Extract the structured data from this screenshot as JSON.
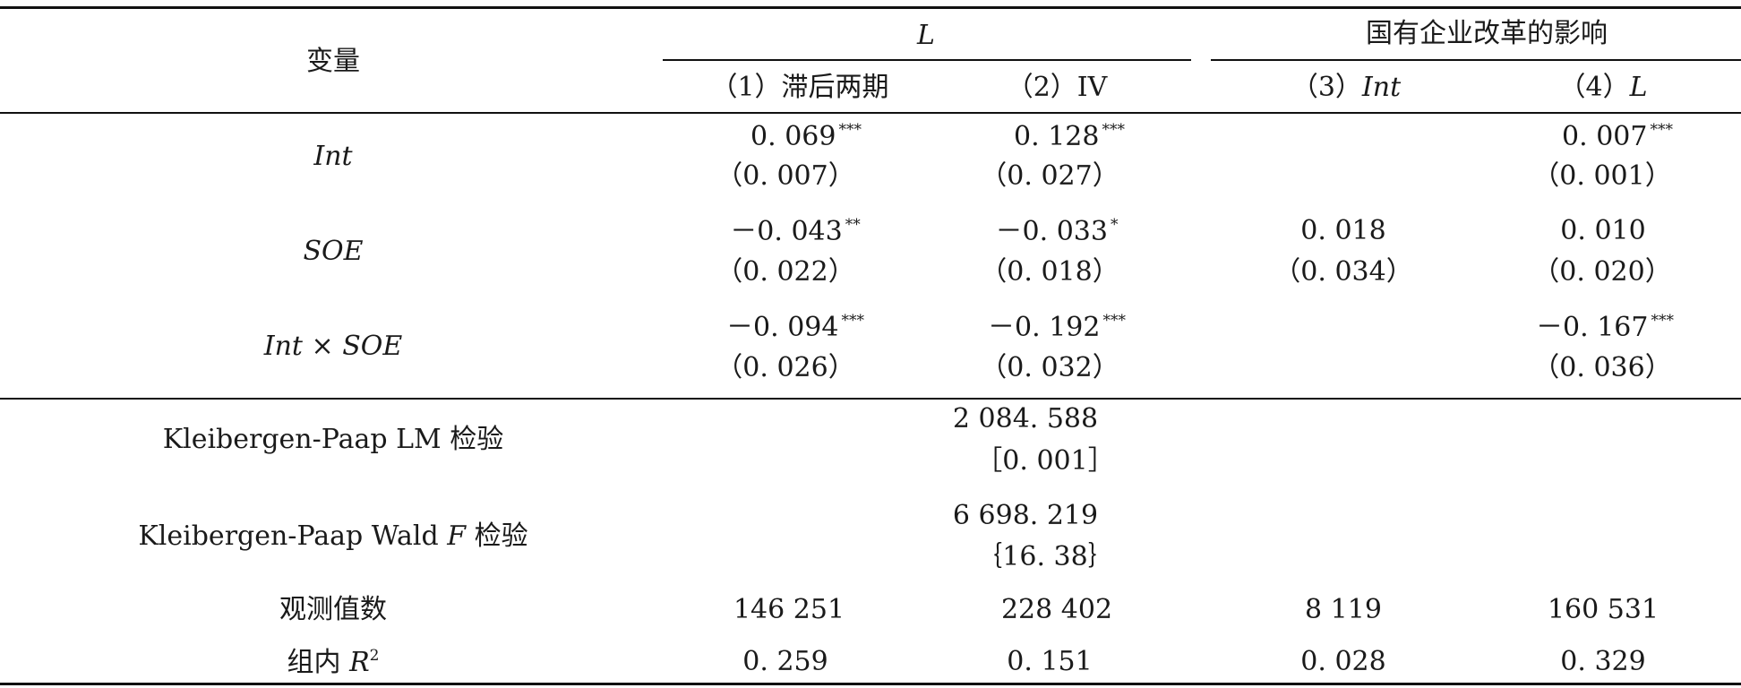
{
  "header": {
    "var_label": "变量",
    "group_L": "L",
    "group_reform": "国有企业改革的影响",
    "col1": "（1）滞后两期",
    "col2": "（2）IV",
    "col3_prefix": "（3）",
    "col3_var": "Int",
    "col4_prefix": "（4）",
    "col4_var": "L"
  },
  "rows": {
    "int": {
      "label": "Int",
      "c1": "0. 069",
      "c1_sig": "***",
      "c1_se": "（0. 007）",
      "c2": "0. 128",
      "c2_sig": "***",
      "c2_se": "（0. 027）",
      "c4": "0. 007",
      "c4_sig": "***",
      "c4_se": "（0. 001）"
    },
    "soe": {
      "label": "SOE",
      "c1": "－0. 043",
      "c1_sig": "**",
      "c1_se": "（0. 022）",
      "c2": "－0. 033",
      "c2_sig": "*",
      "c2_se": "（0. 018）",
      "c3": "0. 018",
      "c3_se": "（0. 034）",
      "c4": "0. 010",
      "c4_se": "（0. 020）"
    },
    "int_soe": {
      "label": "Int × SOE",
      "c1": "－0. 094",
      "c1_sig": "***",
      "c1_se": "（0. 026）",
      "c2": "－0. 192",
      "c2_sig": "***",
      "c2_se": "（0. 032）",
      "c4": "－0. 167",
      "c4_sig": "***",
      "c4_se": "（0. 036）"
    },
    "kp_lm": {
      "label": "Kleibergen-Paap LM 检验",
      "value": "2 084. 588",
      "p": "［0. 001］"
    },
    "kp_wald": {
      "label_prefix": "Kleibergen-Paap Wald ",
      "label_var": "F",
      "label_suffix": " 检验",
      "value": "6 698. 219",
      "crit": "｛16. 38｝"
    },
    "obs": {
      "label": "观测值数",
      "c1": "146 251",
      "c2": "228 402",
      "c3": "8 119",
      "c4": "160 531"
    },
    "r2": {
      "label_prefix": "组内 ",
      "label_var": "R",
      "label_sup": "2",
      "c1": "0. 259",
      "c2": "0. 151",
      "c3": "0. 028",
      "c4": "0. 329"
    }
  }
}
